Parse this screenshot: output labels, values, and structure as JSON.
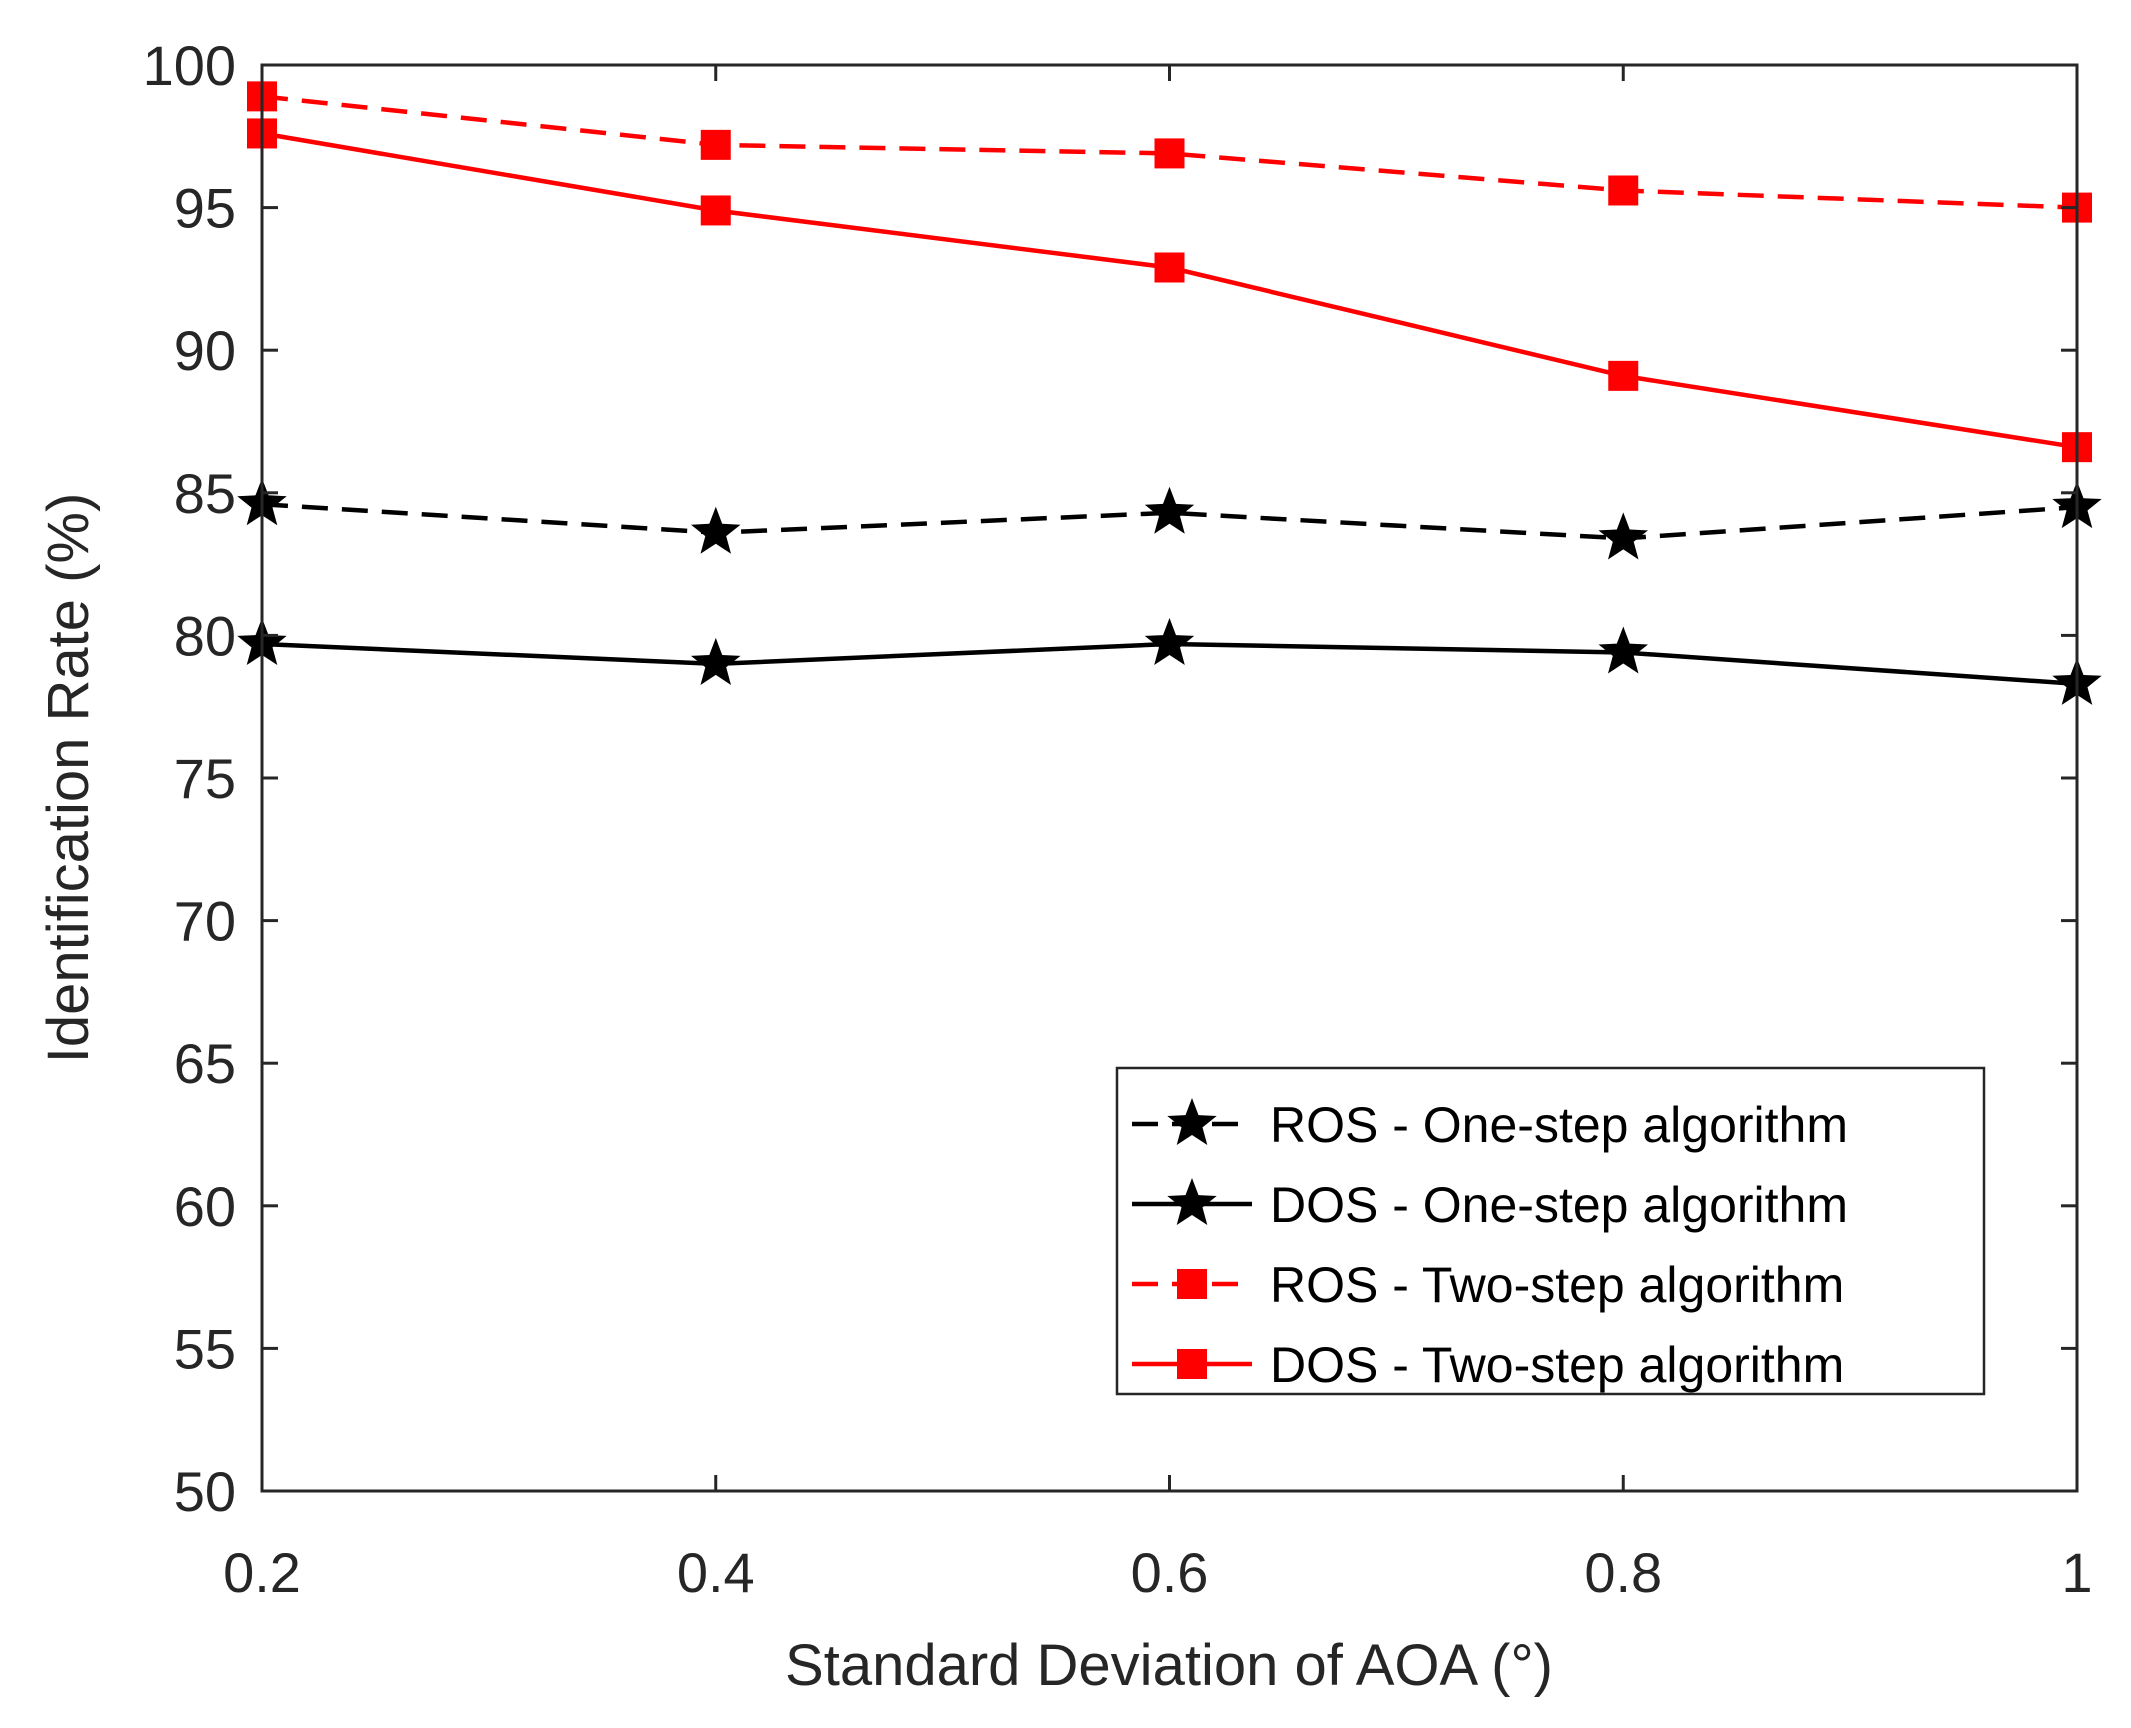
{
  "chart_data": {
    "type": "line",
    "title": "",
    "xlabel": "Standard Deviation of AOA (°)",
    "ylabel": "Identification Rate (%)",
    "x": [
      0.2,
      0.4,
      0.6,
      0.8,
      1
    ],
    "xlim": [
      0.2,
      1
    ],
    "ylim": [
      50,
      100
    ],
    "xticks": [
      "0.2",
      "0.4",
      "0.6",
      "0.8",
      "1"
    ],
    "yticks": [
      "50",
      "55",
      "60",
      "65",
      "70",
      "75",
      "80",
      "85",
      "90",
      "95",
      "100"
    ],
    "grid": false,
    "legend_position": "bottom-right",
    "series": [
      {
        "name": "ROS - One-step algorithm",
        "color": "#000000",
        "dash": "dashed",
        "marker": "star",
        "values": [
          84.6,
          83.6,
          84.3,
          83.4,
          84.5
        ]
      },
      {
        "name": "DOS - One-step algorithm",
        "color": "#000000",
        "dash": "solid",
        "marker": "star",
        "values": [
          79.7,
          79.0,
          79.7,
          79.4,
          78.3
        ]
      },
      {
        "name": "ROS - Two-step algorithm",
        "color": "#ff0000",
        "dash": "dashed",
        "marker": "square",
        "values": [
          98.9,
          97.2,
          96.9,
          95.6,
          95.0
        ]
      },
      {
        "name": "DOS - Two-step algorithm",
        "color": "#ff0000",
        "dash": "solid",
        "marker": "square",
        "values": [
          97.6,
          94.9,
          92.9,
          89.1,
          86.6
        ]
      }
    ]
  }
}
